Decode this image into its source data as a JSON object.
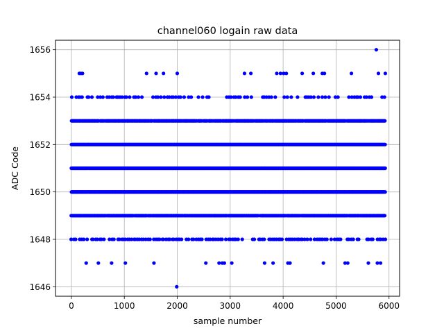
{
  "chart_data": {
    "type": "scatter",
    "title": "channel060 logain raw data",
    "xlabel": "sample number",
    "ylabel": "ADC Code",
    "xlim": [
      -300,
      6200
    ],
    "ylim": [
      1645.6,
      1656.4
    ],
    "xticks": [
      0,
      1000,
      2000,
      3000,
      4000,
      5000,
      6000
    ],
    "yticks": [
      1646,
      1648,
      1650,
      1652,
      1654,
      1656
    ],
    "grid": true,
    "marker_color": "#0000ff",
    "series": [
      {
        "name": "",
        "x_range": [
          0,
          5930
        ],
        "dense_levels": [
          1648,
          1649,
          1650,
          1651,
          1652,
          1653,
          1654
        ],
        "points": [
          {
            "y": 1656,
            "x": [
              5760
            ]
          },
          {
            "y": 1655,
            "x": [
              150,
              180,
              210,
              1420,
              1600,
              1740,
              2000,
              3270,
              3390,
              3880,
              3950,
              4010,
              4060,
              4360,
              4570,
              4740,
              4780,
              5290,
              5800,
              5930
            ]
          },
          {
            "y": 1647,
            "x": [
              280,
              510,
              760,
              1020,
              1560,
              2540,
              2790,
              2850,
              2890,
              3030,
              3650,
              3810,
              4090,
              4130,
              4760,
              5170,
              5220,
              5610,
              5780,
              5840
            ]
          },
          {
            "y": 1646,
            "x": [
              1990
            ]
          }
        ]
      }
    ]
  }
}
